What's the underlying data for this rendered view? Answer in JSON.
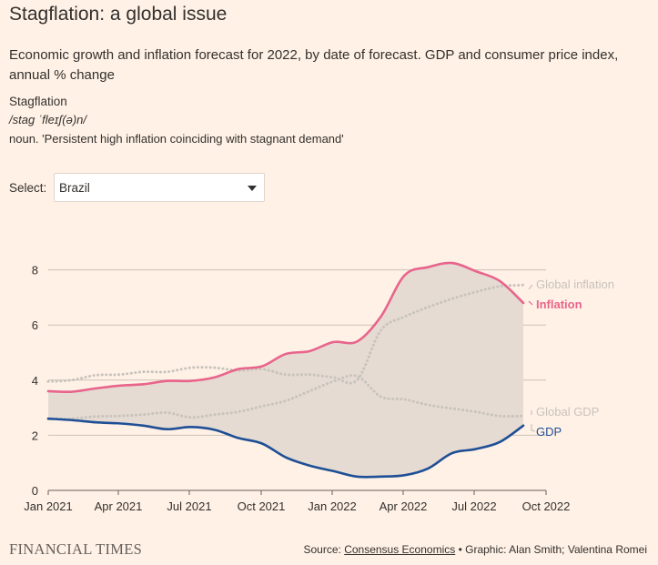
{
  "title": "Stagflation: a global issue",
  "subtitle": "Economic growth and inflation forecast for 2022, by date of forecast. GDP and consumer price index, annual % change",
  "definition": {
    "term": "Stagflation",
    "pronunciation": "/stag ˈfleɪʃ(ə)n/",
    "meaning": "noun. 'Persistent high inflation coinciding with stagnant demand'"
  },
  "select": {
    "label": "Select:",
    "value": "Brazil"
  },
  "footer": {
    "logo": "FINANCIAL TIMES",
    "source_prefix": "Source: ",
    "source_link": "Consensus Economics",
    "source_suffix": " • Graphic: Alan Smith; Valentina Romei"
  },
  "colors": {
    "background": "#fff1e5",
    "inflation": "#e8648c",
    "gdp": "#1e4f96",
    "global": "#c8c3bd",
    "band": "#e5dbd2",
    "grid": "#ccc1b7",
    "text": "#33302e"
  },
  "chart_data": {
    "type": "line",
    "ylim": [
      0,
      8.5
    ],
    "yticks": [
      0,
      2,
      4,
      6,
      8
    ],
    "xticks": [
      "Jan 2021",
      "Apr 2021",
      "Jul 2021",
      "Oct 2021",
      "Jan 2022",
      "Apr 2022",
      "Jul 2022",
      "Oct 2022"
    ],
    "x": [
      "2021-01",
      "2021-02",
      "2021-03",
      "2021-04",
      "2021-05",
      "2021-06",
      "2021-07",
      "2021-08",
      "2021-09",
      "2021-10",
      "2021-11",
      "2021-12",
      "2022-01",
      "2022-02",
      "2022-03",
      "2022-04",
      "2022-05",
      "2022-06",
      "2022-07",
      "2022-08",
      "2022-09"
    ],
    "series": [
      {
        "name": "Inflation",
        "style": "solid",
        "values": [
          3.6,
          3.58,
          3.7,
          3.8,
          3.85,
          3.97,
          3.97,
          4.1,
          4.4,
          4.5,
          4.95,
          5.05,
          5.38,
          5.4,
          6.3,
          7.8,
          8.1,
          8.25,
          7.95,
          7.6,
          6.8
        ]
      },
      {
        "name": "Global inflation",
        "style": "dotted",
        "values": [
          3.95,
          4.0,
          4.18,
          4.2,
          4.3,
          4.3,
          4.45,
          4.45,
          4.35,
          4.4,
          4.2,
          4.2,
          4.1,
          4.0,
          5.8,
          6.3,
          6.65,
          6.95,
          7.2,
          7.4,
          7.45
        ]
      },
      {
        "name": "Global GDP",
        "style": "dotted",
        "values": [
          2.6,
          2.6,
          2.68,
          2.7,
          2.75,
          2.82,
          2.65,
          2.75,
          2.85,
          3.05,
          3.25,
          3.6,
          3.95,
          4.15,
          3.4,
          3.3,
          3.1,
          2.97,
          2.85,
          2.7,
          2.7
        ]
      },
      {
        "name": "GDP",
        "style": "solid",
        "values": [
          2.6,
          2.55,
          2.47,
          2.43,
          2.35,
          2.22,
          2.3,
          2.2,
          1.9,
          1.7,
          1.2,
          0.9,
          0.7,
          0.5,
          0.5,
          0.55,
          0.8,
          1.35,
          1.5,
          1.75,
          2.35
        ]
      }
    ]
  }
}
